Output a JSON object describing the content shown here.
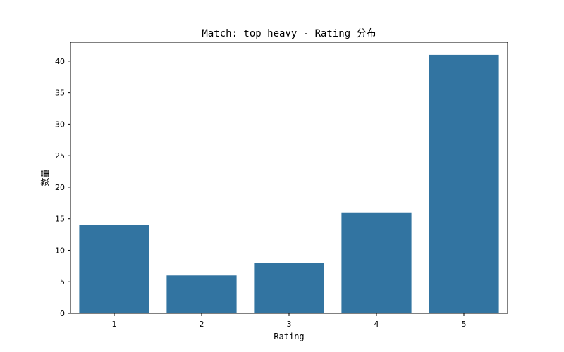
{
  "chart_data": {
    "type": "bar",
    "title": "Match: top heavy - Rating 分布",
    "xlabel": "Rating",
    "ylabel": "数量",
    "categories": [
      "1",
      "2",
      "3",
      "4",
      "5"
    ],
    "values": [
      14,
      6,
      8,
      16,
      41
    ],
    "ylim": [
      0,
      43
    ],
    "yticks": [
      "0",
      "5",
      "10",
      "15",
      "20",
      "25",
      "30",
      "35",
      "40"
    ],
    "grid": false,
    "bar_color": "#3274a1"
  }
}
